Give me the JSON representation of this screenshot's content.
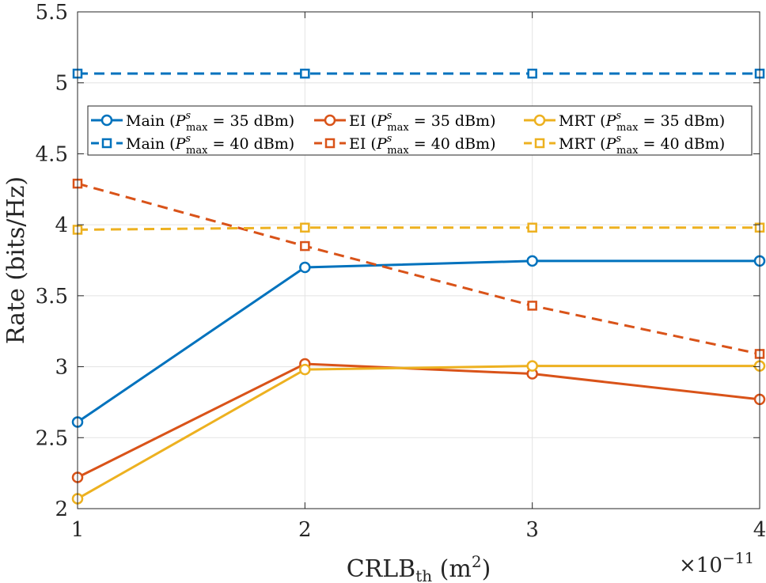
{
  "chart_data": {
    "type": "line",
    "xlabel": "CRLB",
    "xlabel_sub": "th",
    "xlabel_unit_open": " (m",
    "xlabel_unit_sup": "2",
    "xlabel_unit_close": ")",
    "ylabel": "Rate (bits/Hz)",
    "x_exponent_base": "×10",
    "x_exponent_power": "−11",
    "x": [
      1,
      2,
      3,
      4
    ],
    "xlim": [
      1,
      4
    ],
    "ylim": [
      2,
      5.5
    ],
    "xticks": [
      "1",
      "2",
      "3",
      "4"
    ],
    "yticks": [
      "2",
      "2.5",
      "3",
      "3.5",
      "4",
      "4.5",
      "5",
      "5.5"
    ],
    "grid": true,
    "legend_position": "upper-center",
    "series": [
      {
        "name": "Main",
        "power": "35",
        "values": [
          2.61,
          3.7,
          3.745,
          3.745
        ],
        "color": "#0072BD",
        "dashed": false,
        "marker": "circle"
      },
      {
        "name": "Main",
        "power": "40",
        "values": [
          5.065,
          5.065,
          5.065,
          5.065
        ],
        "color": "#0072BD",
        "dashed": true,
        "marker": "square"
      },
      {
        "name": "EI",
        "power": "35",
        "values": [
          2.22,
          3.02,
          2.95,
          2.77
        ],
        "color": "#D95319",
        "dashed": false,
        "marker": "circle"
      },
      {
        "name": "EI",
        "power": "40",
        "values": [
          4.29,
          3.85,
          3.43,
          3.09
        ],
        "color": "#D95319",
        "dashed": true,
        "marker": "square"
      },
      {
        "name": "MRT",
        "power": "35",
        "values": [
          2.07,
          2.98,
          3.005,
          3.005
        ],
        "color": "#EDB120",
        "dashed": false,
        "marker": "circle"
      },
      {
        "name": "MRT",
        "power": "40",
        "values": [
          3.965,
          3.98,
          3.98,
          3.98
        ],
        "color": "#EDB120",
        "dashed": true,
        "marker": "square"
      }
    ],
    "legend_sym_P": "P",
    "legend_sym_sup": "s",
    "legend_sym_sub": "max",
    "legend_unit": "dBm"
  }
}
